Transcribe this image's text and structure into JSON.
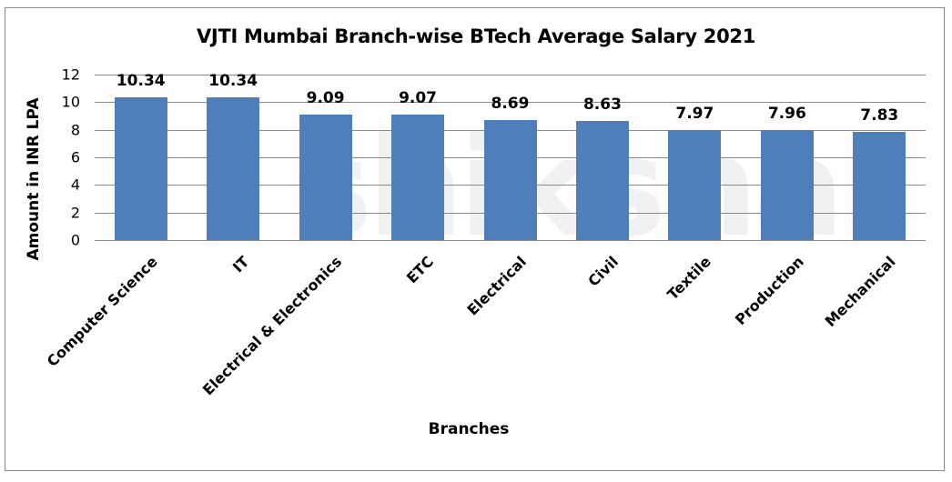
{
  "chart_data": {
    "type": "bar",
    "title": "VJTI Mumbai Branch-wise BTech Average Salary 2021",
    "xlabel": "Branches",
    "ylabel": "Amount in INR LPA",
    "ylim": [
      0,
      12
    ],
    "yticks": [
      0,
      2,
      4,
      6,
      8,
      10,
      12
    ],
    "grid": true,
    "legend": null,
    "categories": [
      "Computer Science",
      "IT",
      "Electrical & Electronics",
      "ETC",
      "Electrical",
      "Civil",
      "Textile",
      "Production",
      "Mechanical"
    ],
    "values": [
      10.34,
      10.34,
      9.09,
      9.07,
      8.69,
      8.63,
      7.97,
      7.96,
      7.83
    ],
    "value_labels": [
      "10.34",
      "10.34",
      "9.09",
      "9.07",
      "8.69",
      "8.63",
      "7.97",
      "7.96",
      "7.83"
    ],
    "bar_color": "#4f7fba",
    "watermark": "shiksha"
  }
}
